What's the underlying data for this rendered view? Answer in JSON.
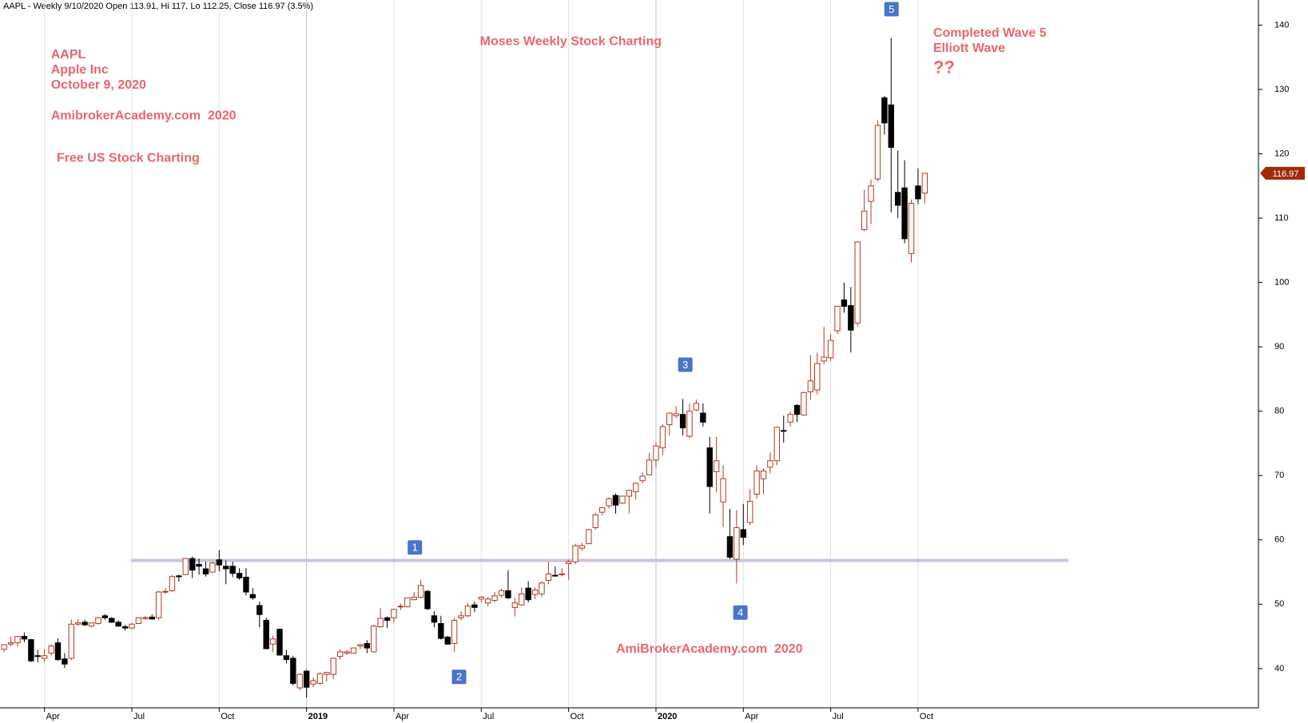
{
  "chart_data": {
    "type": "candlestick",
    "header": "AAPL - Weekly 9/10/2020 Open 113.91, Hi 117, Lo 112.25, Close 116.97 (3.5%)",
    "annotations": [
      "AAPL",
      "Apple Inc",
      "October 9, 2020",
      "AmibrokerAcademy.com  2020",
      "Free US Stock Charting",
      "Moses Weekly Stock Charting",
      "Completed Wave 5",
      "Elliott Wave",
      "??",
      "AmiBrokerAcademy.com  2020"
    ],
    "wave_labels": [
      "1",
      "2",
      "3",
      "4",
      "5"
    ],
    "support_line": 56.8,
    "up_color": "#b5391d",
    "down_color": "#000000",
    "support_color": "#cdc3df",
    "wave_color": "#4a74c9",
    "price_tag_color": "#a3290b",
    "ylim": [
      33.9,
      143.9
    ],
    "yticks": [
      40,
      50,
      60,
      70,
      80,
      90,
      100,
      110,
      120,
      130,
      140
    ],
    "grid": true,
    "categories": [
      null,
      null,
      null,
      null,
      null,
      null,
      "Apr",
      null,
      null,
      null,
      null,
      null,
      null,
      null,
      null,
      null,
      null,
      null,
      null,
      "Jul",
      null,
      null,
      null,
      null,
      null,
      null,
      null,
      null,
      null,
      null,
      null,
      null,
      "Oct",
      null,
      null,
      null,
      null,
      null,
      null,
      null,
      null,
      null,
      null,
      null,
      null,
      "2019",
      null,
      null,
      null,
      null,
      null,
      null,
      null,
      null,
      null,
      null,
      null,
      null,
      "Apr",
      null,
      null,
      null,
      null,
      null,
      null,
      null,
      null,
      null,
      null,
      null,
      null,
      "Jul",
      null,
      null,
      null,
      null,
      null,
      null,
      null,
      null,
      null,
      null,
      null,
      null,
      "Oct",
      null,
      null,
      null,
      null,
      null,
      null,
      null,
      null,
      null,
      null,
      null,
      null,
      "2020",
      null,
      null,
      null,
      null,
      null,
      null,
      null,
      null,
      null,
      null,
      null,
      null,
      "Apr",
      null,
      null,
      null,
      null,
      null,
      null,
      null,
      null,
      null,
      null,
      null,
      null,
      "Jul",
      null,
      null,
      null,
      null,
      null,
      null,
      null,
      null,
      null,
      null,
      null,
      null,
      "Oct",
      null
    ],
    "open": [
      43.0,
      43.8,
      44.0,
      45.0,
      44.5,
      42.0,
      41.6,
      42.4,
      44.0,
      41.5,
      41.6,
      46.9,
      47.2,
      46.6,
      47.0,
      48.2,
      47.8,
      47.2,
      46.5,
      46.3,
      47.0,
      47.9,
      48.0,
      47.9,
      52.0,
      52.1,
      54.4,
      54.6,
      57.1,
      56.2,
      55.5,
      55.0,
      56.9,
      55.9,
      55.9,
      54.8,
      54.2,
      51.5,
      49.8,
      47.5,
      43.8,
      46.1,
      42.0,
      41.6,
      37.0,
      39.6,
      37.6,
      37.7,
      39.1,
      39.1,
      41.9,
      42.4,
      42.4,
      43.5,
      43.9,
      42.6,
      46.5,
      47.9,
      47.9,
      49.7,
      49.6,
      50.7,
      51.1,
      52.0,
      48.2,
      47.0,
      44.9,
      43.9,
      47.9,
      48.2,
      49.9,
      50.8,
      50.2,
      50.6,
      51.4,
      52.1,
      49.5,
      49.9,
      52.5,
      51.5,
      51.6,
      53.7,
      54.5,
      54.7,
      56.3,
      56.6,
      58.7,
      59.4,
      61.9,
      64.3,
      65.3,
      66.9,
      65.7,
      66.8,
      67.5,
      69.2,
      70.1,
      72.4,
      74.3,
      77.9,
      79.3,
      79.5,
      76.1,
      80.2,
      79.7,
      74.3,
      70.6,
      65.9,
      60.5,
      57.0,
      61.6,
      62.7,
      67.1,
      69.5,
      71.3,
      72.3,
      77.0,
      78.3,
      80.9,
      79.4,
      83.0,
      83.3,
      87.8,
      88.3,
      92.5,
      97.3,
      96.4,
      93.7,
      108.2,
      112.6,
      116.1,
      128.7,
      127.6,
      114.0,
      114.7,
      104.5,
      115.0,
      113.91
    ],
    "high": [
      43.8,
      45.0,
      45.0,
      45.6,
      44.6,
      42.9,
      43.0,
      43.8,
      44.7,
      42.4,
      47.6,
      47.7,
      47.6,
      47.1,
      48.0,
      48.5,
      48.0,
      47.5,
      46.8,
      47.1,
      48.0,
      48.2,
      48.4,
      52.1,
      52.5,
      54.5,
      54.6,
      57.2,
      57.4,
      57.1,
      56.6,
      56.6,
      58.4,
      56.8,
      56.6,
      55.6,
      55.6,
      52.5,
      50.4,
      47.9,
      45.1,
      46.2,
      42.9,
      42.0,
      39.3,
      39.8,
      38.6,
      39.4,
      39.5,
      41.7,
      43.0,
      42.9,
      43.3,
      43.9,
      44.4,
      46.8,
      49.4,
      48.1,
      49.3,
      50.1,
      51.0,
      51.9,
      53.8,
      52.2,
      48.9,
      48.2,
      45.1,
      47.9,
      48.9,
      50.2,
      50.4,
      51.3,
      51.1,
      51.9,
      52.4,
      55.3,
      51.0,
      52.6,
      53.6,
      52.6,
      53.6,
      56.6,
      55.9,
      55.6,
      56.9,
      59.4,
      59.5,
      61.7,
      64.2,
      65.1,
      66.6,
      67.2,
      66.8,
      67.8,
      68.9,
      70.5,
      73.5,
      75.2,
      78.0,
      79.7,
      80.8,
      81.9,
      81.2,
      81.8,
      81.2,
      76.0,
      76.0,
      71.6,
      64.8,
      64.6,
      65.6,
      67.9,
      71.6,
      71.1,
      73.6,
      77.6,
      79.3,
      79.9,
      81.1,
      83.0,
      88.7,
      89.1,
      93.1,
      92.0,
      96.4,
      100.0,
      99.3,
      106.4,
      114.4,
      116.0,
      125.2,
      129.0,
      138.0,
      120.5,
      119.0,
      112.9,
      117.7,
      117
    ],
    "low": [
      42.6,
      43.5,
      43.5,
      44.1,
      41.0,
      41.0,
      41.0,
      42.0,
      41.2,
      40.1,
      41.3,
      46.6,
      46.6,
      46.4,
      46.8,
      47.6,
      47.1,
      46.5,
      45.9,
      46.1,
      47.0,
      47.6,
      47.6,
      47.5,
      51.6,
      51.9,
      53.5,
      54.6,
      54.1,
      54.6,
      54.3,
      54.9,
      55.1,
      53.1,
      54.2,
      53.8,
      51.4,
      50.7,
      46.4,
      43.0,
      42.6,
      42.0,
      40.8,
      37.4,
      36.6,
      35.5,
      37.1,
      37.5,
      38.0,
      38.4,
      41.4,
      42.1,
      42.3,
      43.0,
      42.4,
      42.5,
      46.4,
      46.3,
      47.1,
      49.1,
      49.6,
      50.6,
      50.9,
      49.1,
      46.4,
      44.5,
      43.7,
      42.6,
      47.5,
      48.0,
      48.8,
      50.3,
      49.6,
      50.3,
      51.0,
      50.8,
      48.1,
      49.8,
      50.3,
      50.8,
      51.1,
      53.1,
      54.3,
      54.3,
      53.8,
      56.2,
      58.3,
      59.3,
      61.6,
      63.8,
      64.9,
      64.1,
      65.6,
      64.1,
      66.3,
      68.8,
      70.1,
      71.3,
      73.2,
      76.2,
      78.9,
      76.2,
      75.8,
      80.0,
      77.6,
      64.1,
      67.4,
      62.0,
      57.0,
      53.2,
      59.2,
      62.3,
      66.4,
      67.1,
      70.3,
      71.6,
      75.1,
      77.6,
      78.3,
      79.3,
      81.8,
      82.6,
      87.3,
      87.8,
      92.0,
      95.3,
      89.1,
      93.2,
      108.0,
      109.1,
      115.7,
      123.0,
      110.9,
      110.0,
      106.1,
      103.1,
      112.2,
      112.25
    ],
    "close": [
      43.7,
      44.0,
      45.0,
      44.6,
      41.2,
      41.9,
      42.0,
      43.5,
      41.4,
      40.7,
      46.9,
      47.1,
      46.8,
      47.1,
      47.9,
      47.9,
      47.2,
      46.6,
      46.3,
      46.9,
      47.9,
      47.9,
      47.7,
      51.9,
      52.0,
      54.3,
      54.3,
      57.1,
      55.3,
      55.9,
      54.7,
      56.4,
      56.1,
      55.5,
      54.8,
      54.1,
      51.9,
      51.0,
      48.4,
      43.1,
      44.6,
      42.1,
      41.4,
      37.7,
      39.1,
      37.1,
      38.1,
      39.2,
      39.4,
      41.6,
      42.6,
      42.6,
      43.2,
      43.7,
      43.2,
      46.6,
      47.8,
      47.5,
      49.2,
      49.7,
      51.0,
      51.1,
      52.9,
      49.3,
      47.2,
      44.7,
      43.8,
      47.5,
      48.2,
      49.7,
      49.5,
      51.1,
      50.8,
      51.3,
      52.1,
      51.0,
      50.2,
      51.6,
      50.7,
      52.2,
      53.3,
      54.7,
      54.4,
      54.7,
      56.6,
      59.1,
      59.1,
      61.6,
      63.9,
      65.0,
      66.4,
      65.4,
      66.8,
      67.7,
      68.8,
      69.9,
      72.4,
      74.6,
      77.6,
      79.7,
      79.6,
      77.4,
      80.0,
      81.2,
      78.3,
      68.3,
      72.3,
      69.5,
      57.3,
      61.9,
      60.4,
      66.0,
      70.7,
      70.7,
      72.3,
      77.5,
      76.9,
      79.5,
      79.5,
      82.9,
      84.7,
      87.4,
      88.4,
      91.0,
      96.3,
      96.3,
      92.6,
      106.3,
      111.1,
      115.0,
      124.4,
      124.8,
      121.0,
      112.0,
      106.8,
      112.3,
      113.0,
      116.97
    ]
  }
}
